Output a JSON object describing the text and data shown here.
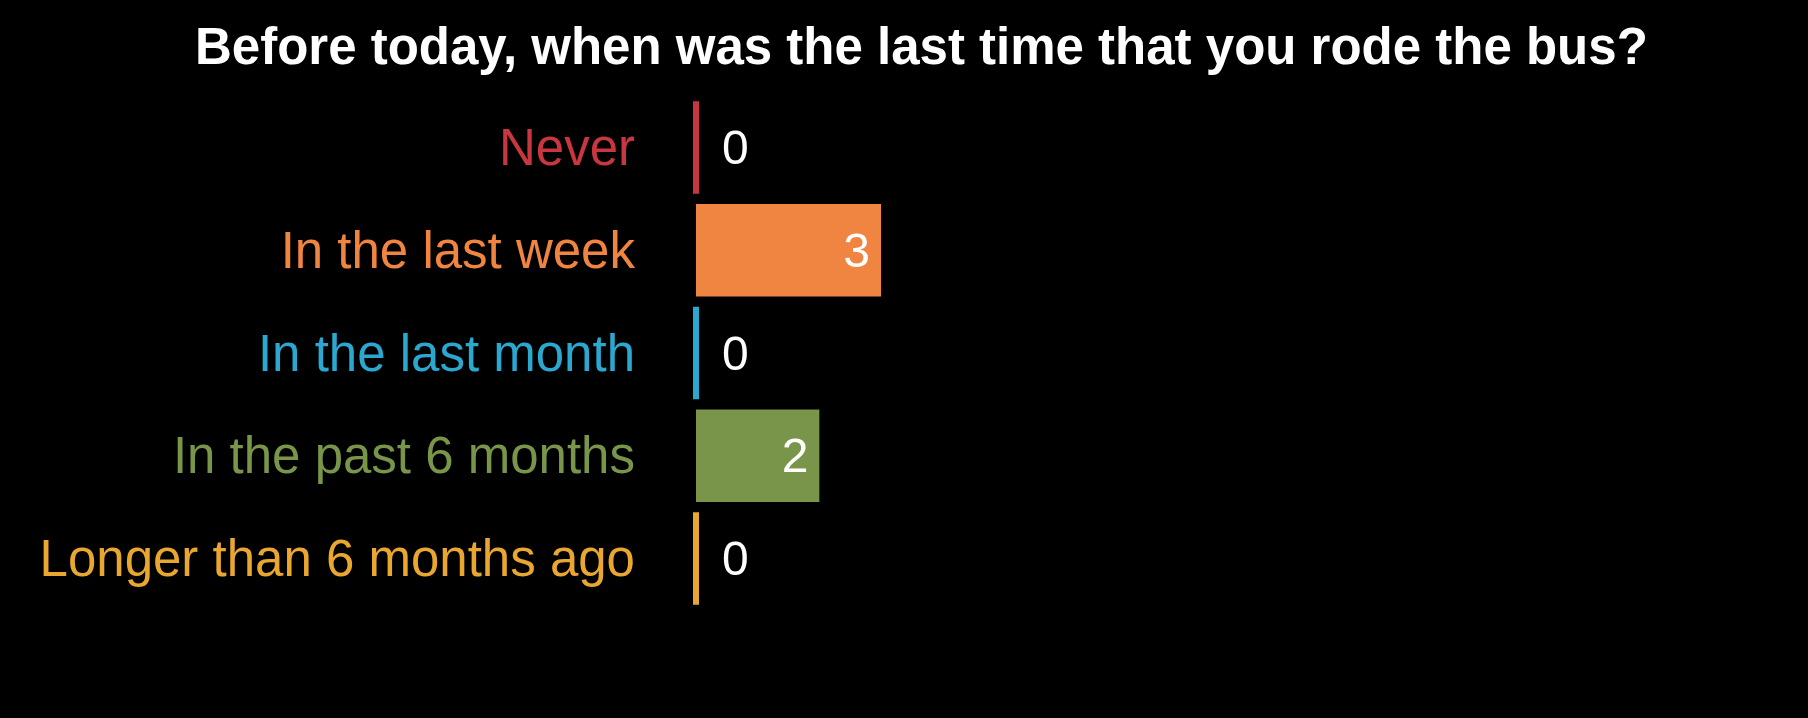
{
  "chart_data": {
    "type": "bar",
    "orientation": "horizontal",
    "title": "Before today, when was the last time that you rode the bus?",
    "categories": [
      "Never",
      "In the last week",
      "In the last month",
      "In the past 6 months",
      "Longer than 6 months ago"
    ],
    "values": [
      0,
      3,
      0,
      2,
      0
    ],
    "colors": [
      "#c8363f",
      "#f08441",
      "#2aa8d0",
      "#78954a",
      "#e9a72f"
    ],
    "data_labels": true
  }
}
